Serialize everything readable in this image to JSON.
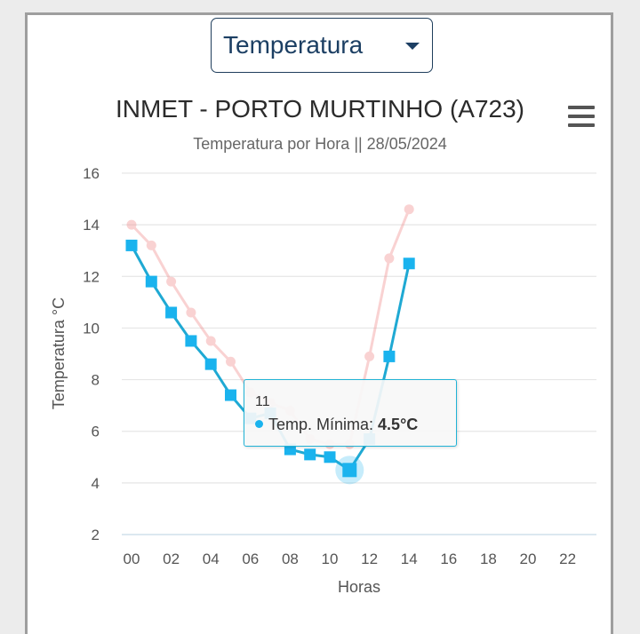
{
  "selector": {
    "value": "Temperatura"
  },
  "chart_data": {
    "type": "line",
    "title": "INMET - PORTO MURTINHO (A723)",
    "subtitle": "Temperatura por Hora || 28/05/2024",
    "xlabel": "Horas",
    "ylabel": "Temperatura °C",
    "xlim": [
      0,
      23
    ],
    "ylim": [
      2,
      16
    ],
    "yticks": [
      2,
      4,
      6,
      8,
      10,
      12,
      14,
      16
    ],
    "xticks": [
      "00",
      "02",
      "04",
      "06",
      "08",
      "10",
      "12",
      "14",
      "16",
      "18",
      "20",
      "22"
    ],
    "grid": true,
    "series": [
      {
        "color": "#f08080",
        "marker": "circle",
        "x": [
          0,
          1,
          2,
          3,
          4,
          5,
          6,
          7,
          8,
          9,
          10,
          11,
          12,
          13,
          14
        ],
        "values": [
          14.0,
          13.2,
          11.8,
          10.6,
          9.5,
          8.7,
          7.5,
          7.1,
          6.8,
          5.7,
          5.5,
          5.5,
          8.9,
          12.7,
          14.6
        ]
      },
      {
        "name": "Temp. Mínima",
        "color": "#1ab3ee",
        "line_color": "#1fa9d3",
        "marker": "square",
        "x": [
          0,
          1,
          2,
          3,
          4,
          5,
          6,
          7,
          8,
          9,
          10,
          11,
          12,
          13,
          14
        ],
        "values": [
          13.2,
          11.8,
          10.6,
          9.5,
          8.6,
          7.4,
          6.5,
          6.7,
          5.3,
          5.1,
          5.0,
          4.5,
          5.7,
          8.9,
          12.5
        ]
      }
    ],
    "tooltip": {
      "x_label": "11",
      "series": "Temp. Mínima",
      "value": "4.5°C"
    }
  }
}
